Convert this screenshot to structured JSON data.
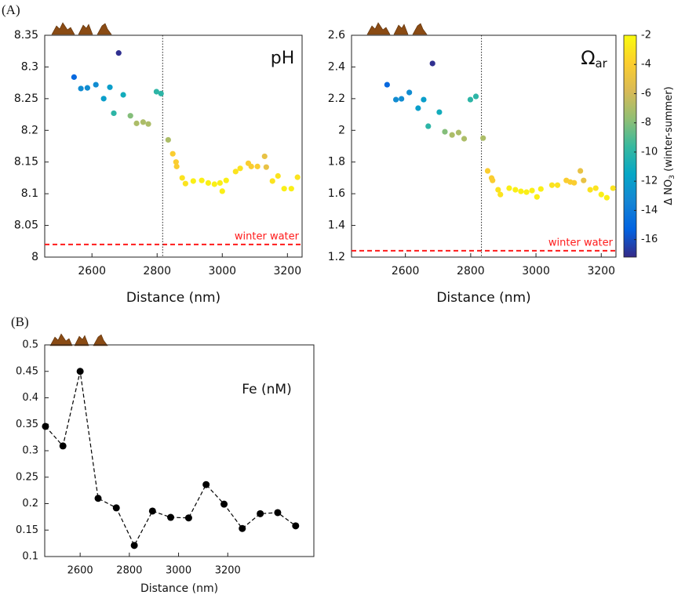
{
  "panel_labels": [
    "(A)",
    "(B)"
  ],
  "chart_data": [
    {
      "type": "scatter",
      "xlabel": "Distance (nm)",
      "annotation": {
        "text": "pH"
      },
      "xlim": [
        2455,
        3245
      ],
      "xticks": [
        2600,
        2800,
        3000,
        3200
      ],
      "ylim": [
        8,
        8.35
      ],
      "yticks": [
        8,
        8.05,
        8.1,
        8.15,
        8.2,
        8.25,
        8.3,
        8.35
      ],
      "clim": [
        -17.2,
        -2
      ],
      "colormap": [
        "#352a87",
        "#0363e1",
        "#1485d4",
        "#06a7c6",
        "#38b99e",
        "#92bf73",
        "#d9ba56",
        "#fcce2e",
        "#f9fb0e"
      ],
      "hlines": [
        {
          "value": 8.02,
          "label": "winter water",
          "color": "#ff1a1a"
        }
      ],
      "vlines": [
        {
          "value": 2817
        }
      ],
      "series": [
        {
          "x": [
            2545,
            2566,
            2586,
            2612,
            2636,
            2655,
            2667,
            2682,
            2696,
            2718,
            2737,
            2757,
            2773,
            2798,
            2812,
            2834,
            2848,
            2858,
            2860,
            2877,
            2887,
            2911,
            2937,
            2957,
            2976,
            2993,
            3000,
            3012,
            3041,
            3055,
            3080,
            3089,
            3108,
            3130,
            3135,
            3154,
            3171,
            3190,
            3212,
            3231
          ],
          "values": [
            8.284,
            8.266,
            8.267,
            8.272,
            8.25,
            8.268,
            8.227,
            8.322,
            8.256,
            8.223,
            8.211,
            8.213,
            8.21,
            8.261,
            8.258,
            8.185,
            8.163,
            8.15,
            8.143,
            8.125,
            8.116,
            8.12,
            8.121,
            8.117,
            8.115,
            8.117,
            8.104,
            8.121,
            8.135,
            8.14,
            8.148,
            8.143,
            8.143,
            8.159,
            8.142,
            8.12,
            8.128,
            8.108,
            8.108,
            8.126
          ],
          "c": [
            -15,
            -13,
            -13,
            -13,
            -12,
            -12,
            -10,
            -17,
            -11,
            -8,
            -7,
            -7,
            -7,
            -10,
            -10,
            -7,
            -4,
            -4,
            -4,
            -3,
            -3,
            -2.5,
            -2.5,
            -2.5,
            -2.5,
            -2.5,
            -2.5,
            -2.5,
            -3,
            -3,
            -4,
            -4,
            -4,
            -5,
            -5,
            -3,
            -3,
            -2.5,
            -2.5,
            -3
          ]
        }
      ]
    },
    {
      "type": "scatter",
      "xlabel": "Distance (nm)",
      "annotation": {
        "text": "Ω",
        "sub": "ar"
      },
      "xlim": [
        2435,
        3245
      ],
      "xticks": [
        2600,
        2800,
        3000,
        3200
      ],
      "ylim": [
        1.2,
        2.6
      ],
      "yticks": [
        1.2,
        1.4,
        1.6,
        1.8,
        2,
        2.2,
        2.4,
        2.6
      ],
      "clim": [
        -17.2,
        -2
      ],
      "colormap": [
        "#352a87",
        "#0363e1",
        "#1485d4",
        "#06a7c6",
        "#38b99e",
        "#92bf73",
        "#d9ba56",
        "#fcce2e",
        "#f9fb0e"
      ],
      "colorbar": {
        "label": "Δ NO",
        "sub": "3",
        "label_end": " (winter-summer)",
        "ticks": [
          -2,
          -4,
          -6,
          -8,
          -10,
          -12,
          -14,
          -16
        ]
      },
      "hlines": [
        {
          "value": 1.24,
          "label": "winter water",
          "color": "#ff1a1a"
        }
      ],
      "vlines": [
        {
          "value": 2833
        }
      ],
      "series": [
        {
          "x": [
            2544,
            2571,
            2588,
            2612,
            2639,
            2656,
            2670,
            2683,
            2704,
            2721,
            2743,
            2763,
            2780,
            2799,
            2816,
            2838,
            2852,
            2864,
            2867,
            2884,
            2891,
            2918,
            2937,
            2954,
            2971,
            2988,
            3003,
            3015,
            3049,
            3066,
            3093,
            3105,
            3117,
            3136,
            3146,
            3166,
            3183,
            3200,
            3217,
            3236
          ],
          "values": [
            2.288,
            2.194,
            2.199,
            2.239,
            2.14,
            2.194,
            2.026,
            2.422,
            2.115,
            1.991,
            1.971,
            1.986,
            1.947,
            2.194,
            2.214,
            1.951,
            1.744,
            1.699,
            1.684,
            1.625,
            1.595,
            1.635,
            1.625,
            1.615,
            1.61,
            1.62,
            1.58,
            1.63,
            1.654,
            1.654,
            1.684,
            1.674,
            1.669,
            1.744,
            1.684,
            1.625,
            1.635,
            1.595,
            1.575,
            1.635
          ],
          "c": [
            -15,
            -13,
            -13,
            -13,
            -12,
            -12,
            -10,
            -17,
            -11,
            -8,
            -7,
            -7,
            -7,
            -10,
            -10,
            -7,
            -4,
            -4,
            -4,
            -3,
            -3,
            -2.5,
            -2.5,
            -2.5,
            -2.5,
            -2.5,
            -2.5,
            -2.5,
            -3,
            -3,
            -4,
            -4,
            -4,
            -5,
            -5,
            -3,
            -3,
            -2.5,
            -2.5,
            -3
          ]
        }
      ]
    },
    {
      "type": "line",
      "xlabel": "Distance (nm)",
      "annotation": {
        "text": "Fe (nM)"
      },
      "xlim": [
        2456,
        3550
      ],
      "xticks": [
        2600,
        2800,
        3000,
        3200
      ],
      "ylim": [
        0.1,
        0.5
      ],
      "yticks": [
        0.1,
        0.15,
        0.2,
        0.25,
        0.3,
        0.35,
        0.4,
        0.45,
        0.5
      ],
      "series": [
        {
          "color": "#000000",
          "x": [
            2459,
            2530,
            2600,
            2673,
            2747,
            2820,
            2894,
            2968,
            3041,
            3112,
            3185,
            3259,
            3332,
            3403,
            3476
          ],
          "values": [
            0.346,
            0.309,
            0.45,
            0.21,
            0.192,
            0.121,
            0.186,
            0.174,
            0.173,
            0.236,
            0.199,
            0.153,
            0.181,
            0.183,
            0.158
          ]
        }
      ]
    }
  ]
}
